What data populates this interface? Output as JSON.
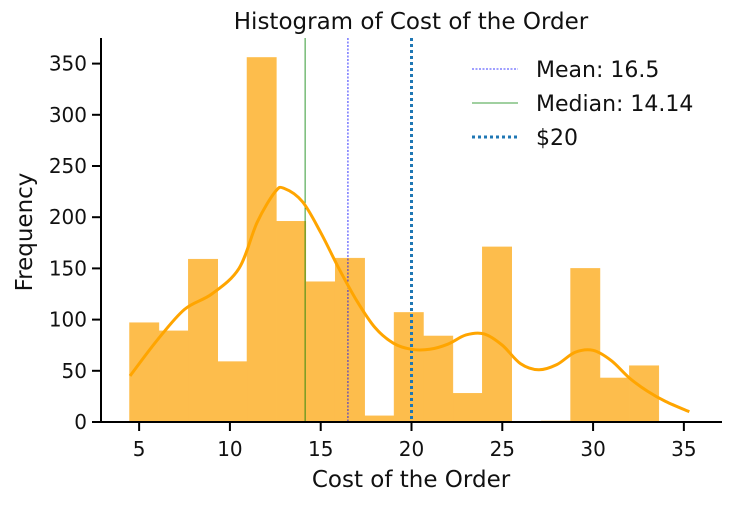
{
  "chart_data": {
    "type": "bar",
    "title": "Histogram of Cost of the Order",
    "xlabel": "Cost of the Order",
    "ylabel": "Frequency",
    "xlim": [
      2.9,
      37.1
    ],
    "ylim": [
      0,
      375
    ],
    "xticks": [
      5,
      10,
      15,
      20,
      25,
      30,
      35
    ],
    "yticks": [
      0,
      50,
      100,
      150,
      200,
      250,
      300,
      350
    ],
    "bin_edges": [
      4.47,
      6.09,
      7.71,
      9.33,
      10.94,
      12.56,
      14.18,
      15.8,
      17.42,
      19.04,
      20.66,
      22.28,
      23.9,
      25.52,
      27.14,
      28.76,
      30.38,
      32.0,
      33.62
    ],
    "bin_counts": [
      97,
      89,
      159,
      59,
      356,
      196,
      137,
      160,
      6,
      107,
      84,
      28,
      171,
      0,
      1,
      150,
      43,
      55
    ],
    "kde": {
      "x": [
        4.5,
        6,
        7.5,
        9,
        10.5,
        11.5,
        12.5,
        13,
        14,
        15,
        16,
        17,
        18,
        19,
        20,
        21,
        22,
        23,
        24,
        25,
        26,
        27,
        28,
        29,
        30,
        31,
        32,
        33,
        34,
        35.3
      ],
      "y": [
        45,
        80,
        110,
        125,
        150,
        195,
        225,
        228,
        215,
        185,
        150,
        118,
        92,
        77,
        71,
        71,
        76,
        85,
        86,
        75,
        57,
        51,
        56,
        68,
        70,
        60,
        43,
        30,
        20,
        10
      ]
    },
    "vlines": [
      {
        "name": "Mean: 16.5",
        "x": 16.5,
        "color": "#0000ff",
        "style": "dashed"
      },
      {
        "name": "Median: 14.14",
        "x": 14.14,
        "color": "#008000",
        "style": "solid"
      },
      {
        "name": "$20",
        "x": 20,
        "color": "#1f77b4",
        "style": "dotted"
      }
    ],
    "legend_position": "top-right",
    "colors": {
      "bars": "#fdbd4c",
      "kde": "#ffa500"
    }
  }
}
